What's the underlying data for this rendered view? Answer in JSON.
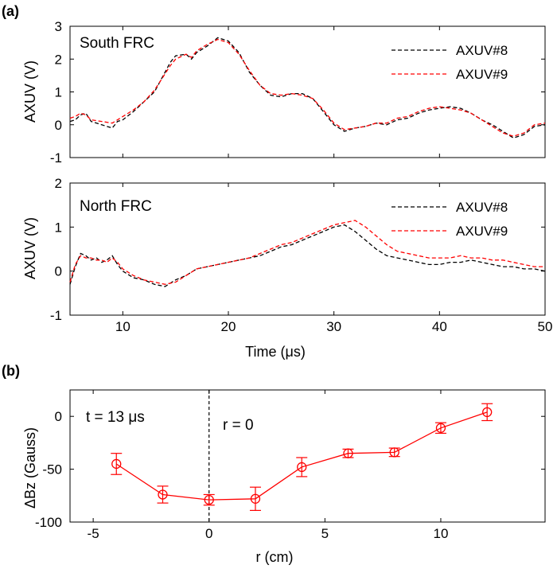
{
  "chart_data": [
    {
      "panel_label": "(a)",
      "type": "line",
      "annotation": "South FRC",
      "ylabel": "AXUV (V)",
      "xlim": [
        5,
        50
      ],
      "ylim": [
        -1,
        3
      ],
      "xticks": [
        10,
        20,
        30,
        40,
        50
      ],
      "yticks": [
        -1,
        0,
        1,
        2,
        3
      ],
      "legend_position": "top-right",
      "series": [
        {
          "name": "AXUV#8",
          "color": "#000000",
          "dashed": true,
          "x": [
            5,
            5.5,
            6,
            6.5,
            7,
            8,
            9,
            9.5,
            10,
            11,
            12,
            13,
            14,
            14.5,
            15,
            16,
            16.5,
            17,
            18,
            19,
            20,
            21,
            22,
            23,
            24,
            25,
            26,
            27,
            28,
            29,
            30,
            31,
            32,
            33,
            34,
            35,
            36,
            37,
            38,
            39,
            40,
            41,
            42,
            43,
            44,
            45,
            46,
            47,
            48,
            49,
            50
          ],
          "y": [
            0.1,
            0.15,
            0.3,
            0.35,
            0.1,
            0.0,
            -0.1,
            0.1,
            0.15,
            0.4,
            0.7,
            1.0,
            1.6,
            1.9,
            2.1,
            2.15,
            2.0,
            2.2,
            2.4,
            2.65,
            2.55,
            2.2,
            1.6,
            1.2,
            0.9,
            0.85,
            0.95,
            0.95,
            0.8,
            0.4,
            0.0,
            -0.2,
            -0.1,
            -0.05,
            0.05,
            0.0,
            0.15,
            0.2,
            0.35,
            0.45,
            0.5,
            0.55,
            0.5,
            0.35,
            0.15,
            0.0,
            -0.2,
            -0.4,
            -0.3,
            -0.05,
            0.0
          ]
        },
        {
          "name": "AXUV#9",
          "color": "#ff0000",
          "dashed": true,
          "x": [
            5,
            5.5,
            6,
            6.5,
            7,
            8,
            9,
            9.5,
            10,
            11,
            12,
            13,
            14,
            14.5,
            15,
            16,
            16.5,
            17,
            18,
            19,
            20,
            21,
            22,
            23,
            24,
            25,
            26,
            27,
            28,
            29,
            30,
            31,
            32,
            33,
            34,
            35,
            36,
            37,
            38,
            39,
            40,
            41,
            42,
            43,
            44,
            45,
            46,
            47,
            48,
            49,
            50
          ],
          "y": [
            0.2,
            0.25,
            0.35,
            0.3,
            0.15,
            0.1,
            0.05,
            0.15,
            0.25,
            0.45,
            0.7,
            1.05,
            1.55,
            1.8,
            2.0,
            2.15,
            2.05,
            2.25,
            2.45,
            2.6,
            2.5,
            2.15,
            1.65,
            1.2,
            0.95,
            0.9,
            0.95,
            0.9,
            0.8,
            0.45,
            0.05,
            -0.15,
            -0.1,
            -0.05,
            0.05,
            0.05,
            0.2,
            0.25,
            0.4,
            0.5,
            0.55,
            0.5,
            0.45,
            0.35,
            0.15,
            -0.05,
            -0.25,
            -0.35,
            -0.25,
            0.0,
            0.05
          ]
        }
      ]
    },
    {
      "type": "line",
      "annotation": "North FRC",
      "ylabel": "AXUV (V)",
      "xlabel": "Time (μs)",
      "xlim": [
        5,
        50
      ],
      "ylim": [
        -1,
        2
      ],
      "xticks": [
        10,
        20,
        30,
        40,
        50
      ],
      "yticks": [
        -1,
        0,
        1,
        2
      ],
      "legend_position": "top-right",
      "series": [
        {
          "name": "AXUV#8",
          "color": "#000000",
          "dashed": true,
          "x": [
            5,
            5.5,
            6,
            6.5,
            7,
            7.5,
            8,
            8.5,
            9,
            9.5,
            10,
            11,
            12,
            13,
            14,
            15,
            16,
            17,
            18,
            19,
            20,
            21,
            22,
            23,
            24,
            25,
            26,
            27,
            28,
            29,
            30,
            31,
            32,
            33,
            34,
            35,
            36,
            37,
            38,
            39,
            40,
            41,
            42,
            43,
            44,
            45,
            46,
            47,
            48,
            49,
            50
          ],
          "y": [
            -0.3,
            0.1,
            0.4,
            0.35,
            0.25,
            0.3,
            0.2,
            0.25,
            0.35,
            0.15,
            0.0,
            -0.15,
            -0.2,
            -0.3,
            -0.35,
            -0.2,
            -0.1,
            0.05,
            0.1,
            0.15,
            0.2,
            0.25,
            0.3,
            0.35,
            0.45,
            0.55,
            0.6,
            0.7,
            0.8,
            0.9,
            1.0,
            1.05,
            0.9,
            0.7,
            0.5,
            0.35,
            0.3,
            0.25,
            0.2,
            0.15,
            0.15,
            0.2,
            0.2,
            0.25,
            0.2,
            0.15,
            0.1,
            0.1,
            0.05,
            0.05,
            0.0
          ]
        },
        {
          "name": "AXUV#9",
          "color": "#ff0000",
          "dashed": true,
          "x": [
            5,
            5.5,
            6,
            6.5,
            7,
            7.5,
            8,
            8.5,
            9,
            9.5,
            10,
            11,
            12,
            13,
            14,
            15,
            16,
            17,
            18,
            19,
            20,
            21,
            22,
            23,
            24,
            25,
            26,
            27,
            28,
            29,
            30,
            31,
            32,
            33,
            34,
            35,
            36,
            37,
            38,
            39,
            40,
            41,
            42,
            43,
            44,
            45,
            46,
            47,
            48,
            49,
            50
          ],
          "y": [
            -0.25,
            0.15,
            0.35,
            0.3,
            0.3,
            0.25,
            0.25,
            0.2,
            0.3,
            0.2,
            0.05,
            -0.1,
            -0.2,
            -0.25,
            -0.3,
            -0.25,
            -0.1,
            0.05,
            0.1,
            0.15,
            0.2,
            0.25,
            0.3,
            0.4,
            0.5,
            0.6,
            0.65,
            0.75,
            0.85,
            0.95,
            1.05,
            1.1,
            1.15,
            1.0,
            0.8,
            0.6,
            0.45,
            0.4,
            0.35,
            0.3,
            0.3,
            0.3,
            0.35,
            0.3,
            0.3,
            0.25,
            0.25,
            0.2,
            0.15,
            0.1,
            0.1
          ]
        }
      ]
    },
    {
      "panel_label": "(b)",
      "type": "line",
      "subtype": "errorbar",
      "xlabel": "r (cm)",
      "ylabel": "ΔBz (Gauss)",
      "xlim": [
        -6,
        14.5
      ],
      "ylim": [
        -100,
        25
      ],
      "xticks": [
        -5,
        0,
        5,
        10
      ],
      "yticks": [
        -100,
        -50,
        0
      ],
      "annotations": [
        "t = 13 μs",
        "r = 0"
      ],
      "vline_x": 0,
      "series": [
        {
          "color": "#ff0000",
          "x": [
            -4,
            -2,
            0,
            2,
            4,
            6,
            8,
            10,
            12
          ],
          "y": [
            -45,
            -74,
            -79,
            -78,
            -48,
            -35,
            -34,
            -11,
            4
          ],
          "err": [
            10,
            8,
            5,
            11,
            9,
            4,
            4,
            5,
            8
          ]
        }
      ]
    }
  ]
}
